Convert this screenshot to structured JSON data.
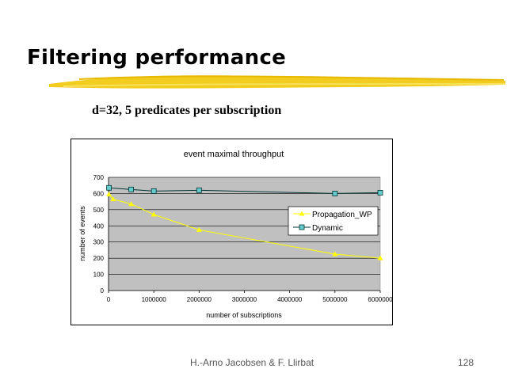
{
  "slide": {
    "title": "Filtering performance",
    "subtitle": "d=32, 5 predicates per subscription",
    "author": "H.-Arno Jacobsen & F. Llirbat",
    "page_number": "128"
  },
  "colors": {
    "plot_bg": "#c0c0c0",
    "brush": "#f2cc1f",
    "propagation": "#ffff00",
    "dynamic": "#003333",
    "dynamic_marker_fill": "#66cccc"
  },
  "chart_data": {
    "type": "line",
    "title": "event maximal throughput",
    "xlabel": "number of subscriptions",
    "ylabel": "number of events",
    "xlim": [
      0,
      6000000
    ],
    "ylim": [
      0,
      700
    ],
    "x_ticks": [
      0,
      1000000,
      2000000,
      3000000,
      4000000,
      5000000,
      6000000
    ],
    "x_tick_labels": [
      "0",
      "1000000",
      "2000000",
      "3000000",
      "4000000",
      "5000000",
      "6000000"
    ],
    "y_ticks": [
      0,
      100,
      200,
      300,
      400,
      500,
      600,
      700
    ],
    "y_tick_labels": [
      "0",
      "100",
      "200",
      "300",
      "400",
      "500",
      "600",
      "700"
    ],
    "grid": true,
    "legend_position": "right",
    "series": [
      {
        "name": "Propagation_WP",
        "marker": "triangle",
        "points": [
          [
            10000,
            595
          ],
          [
            100000,
            565
          ],
          [
            500000,
            535
          ],
          [
            1000000,
            470
          ],
          [
            2000000,
            375
          ],
          [
            5000000,
            225
          ],
          [
            6000000,
            200
          ]
        ]
      },
      {
        "name": "Dynamic",
        "marker": "square",
        "points": [
          [
            10000,
            635
          ],
          [
            500000,
            625
          ],
          [
            1000000,
            615
          ],
          [
            2000000,
            620
          ],
          [
            5000000,
            600
          ],
          [
            6000000,
            605
          ]
        ]
      }
    ]
  }
}
